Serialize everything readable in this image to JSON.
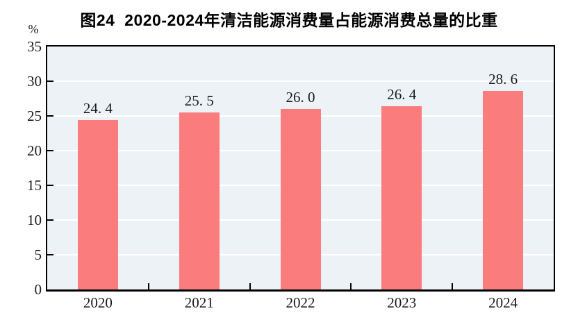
{
  "chart_data": {
    "type": "bar",
    "title": "图24  2020-2024年清洁能源消费量占能源消费总量的比重",
    "ylabel": "%",
    "xlabel": "",
    "categories": [
      "2020",
      "2021",
      "2022",
      "2023",
      "2024"
    ],
    "values": [
      24.4,
      25.5,
      26.0,
      26.4,
      28.6
    ],
    "value_labels": [
      "24. 4",
      "25. 5",
      "26. 0",
      "26. 4",
      "28. 6"
    ],
    "ylim": [
      0,
      35
    ],
    "yticks": [
      0,
      5,
      10,
      15,
      20,
      25,
      30,
      35
    ],
    "grid": "horizontal",
    "legend_position": "none",
    "colors": {
      "bar": "#FB7C7C",
      "plot_background": "#EDF2F7",
      "gridline": "#FFFFFF",
      "axis": "#000000",
      "text": "#1A1A1A"
    }
  }
}
